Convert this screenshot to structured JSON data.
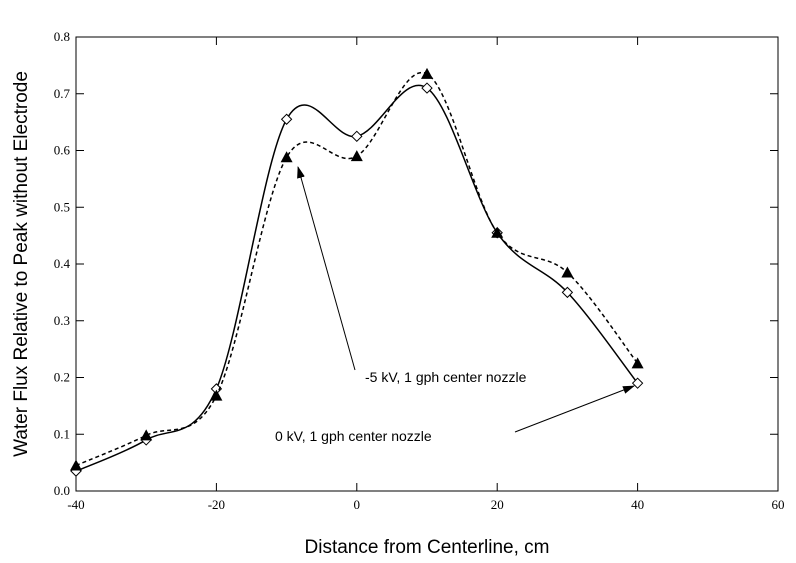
{
  "chart_data": {
    "type": "line",
    "xlabel": "Distance from Centerline, cm",
    "ylabel": "Water Flux Relative to Peak without Electrode",
    "x": [
      -40,
      -30,
      -20,
      -10,
      0,
      10,
      20,
      30,
      40
    ],
    "series": [
      {
        "color": "#000000",
        "marker": "diamond",
        "dashed": false,
        "values": [
          0.035,
          0.09,
          0.18,
          0.655,
          0.625,
          0.71,
          0.455,
          0.35,
          0.19
        ]
      },
      {
        "color": "#000000",
        "marker": "triangle",
        "dashed": true,
        "values": [
          0.045,
          0.098,
          0.168,
          0.588,
          0.59,
          0.735,
          0.455,
          0.385,
          0.225
        ]
      }
    ],
    "annotations": [
      "-5 kV,  1 gph center nozzle",
      "0 kV,  1 gph center nozzle"
    ],
    "xlim": [
      -40,
      60
    ],
    "xticks": [
      -40,
      -20,
      0,
      20,
      40,
      60
    ],
    "ylim": [
      0,
      0.8
    ],
    "yticks": [
      {
        "value": 0,
        "label": "0.0"
      },
      0.1,
      0.2,
      0.3,
      0.4,
      0.5,
      0.6,
      0.7,
      0.8
    ]
  }
}
